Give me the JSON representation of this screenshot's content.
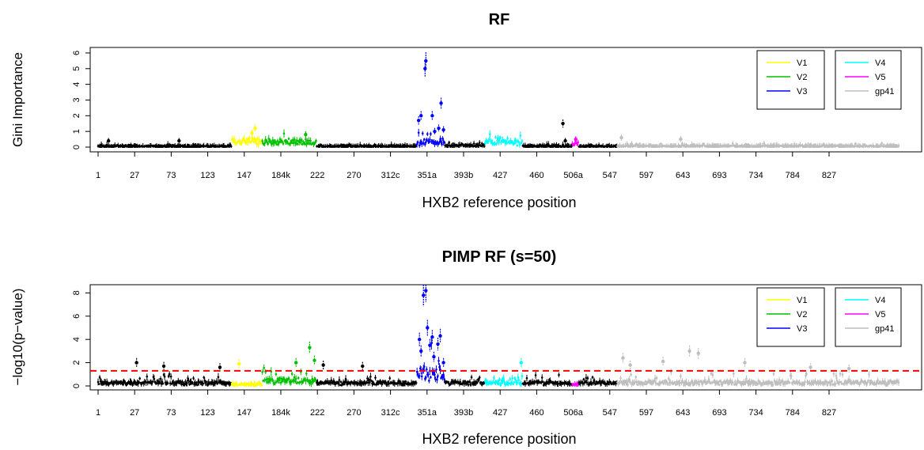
{
  "colors": {
    "V1": "#ffff00",
    "V2": "#00c000",
    "V3": "#0000ff",
    "V4": "#00ffff",
    "V5": "#ff00ff",
    "gp41": "#bebebe",
    "other": "#000000",
    "threshold": "#ff0000"
  },
  "chart_data": [
    {
      "type": "scatter",
      "title": "RF",
      "xlabel": "HXB2 reference position",
      "ylabel": "Gini Importance",
      "ylim": [
        0,
        6.2
      ],
      "yticks": [
        "0",
        "1",
        "2",
        "3",
        "4",
        "5",
        "6"
      ],
      "xticks": [
        "1",
        "27",
        "73",
        "123",
        "147",
        "184k",
        "222",
        "270",
        "312c",
        "351a",
        "393b",
        "427",
        "460",
        "506a",
        "547",
        "597",
        "643",
        "693",
        "734",
        "784",
        "827"
      ],
      "legend": {
        "placement": "top-right",
        "left_box": [
          "V1",
          "V2",
          "V3"
        ],
        "right_box": [
          "V4",
          "V5",
          "gp41"
        ]
      },
      "segments": [
        {
          "region": "other",
          "start": 0,
          "end": 167,
          "base": 0.05,
          "noise": 0.12
        },
        {
          "region": "V1",
          "start": 167,
          "end": 205,
          "base": 0.4,
          "noise": 0.6
        },
        {
          "region": "V2",
          "start": 205,
          "end": 273,
          "base": 0.3,
          "noise": 0.5
        },
        {
          "region": "other",
          "start": 273,
          "end": 398,
          "base": 0.05,
          "noise": 0.12
        },
        {
          "region": "V3",
          "start": 398,
          "end": 433,
          "base": 0.3,
          "noise": 0.7
        },
        {
          "region": "other",
          "start": 433,
          "end": 483,
          "base": 0.08,
          "noise": 0.25
        },
        {
          "region": "V4",
          "start": 483,
          "end": 530,
          "base": 0.3,
          "noise": 0.6
        },
        {
          "region": "other",
          "start": 530,
          "end": 592,
          "base": 0.05,
          "noise": 0.15
        },
        {
          "region": "V5",
          "start": 592,
          "end": 600,
          "base": 0.2,
          "noise": 0.3
        },
        {
          "region": "other",
          "start": 600,
          "end": 648,
          "base": 0.05,
          "noise": 0.1
        },
        {
          "region": "gp41",
          "start": 648,
          "end": 1000,
          "base": 0.05,
          "noise": 0.2
        }
      ],
      "peaks": [
        {
          "x": 400,
          "y": 1.7,
          "region": "V3"
        },
        {
          "x": 403,
          "y": 2.0,
          "region": "V3"
        },
        {
          "x": 408,
          "y": 5.0,
          "region": "V3"
        },
        {
          "x": 409,
          "y": 5.5,
          "region": "V3"
        },
        {
          "x": 417,
          "y": 2.0,
          "region": "V3"
        },
        {
          "x": 420,
          "y": 1.0,
          "region": "V3"
        },
        {
          "x": 425,
          "y": 1.2,
          "region": "V3"
        },
        {
          "x": 428,
          "y": 2.8,
          "region": "V3"
        },
        {
          "x": 431,
          "y": 1.1,
          "region": "V3"
        },
        {
          "x": 196,
          "y": 1.2,
          "region": "V1"
        },
        {
          "x": 192,
          "y": 0.9,
          "region": "V1"
        },
        {
          "x": 259,
          "y": 0.8,
          "region": "V2"
        },
        {
          "x": 580,
          "y": 1.5,
          "region": "other"
        },
        {
          "x": 583,
          "y": 0.4,
          "region": "other"
        },
        {
          "x": 13,
          "y": 0.4,
          "region": "other"
        },
        {
          "x": 101,
          "y": 0.4,
          "region": "other"
        },
        {
          "x": 596,
          "y": 0.5,
          "region": "V5"
        },
        {
          "x": 727,
          "y": 0.5,
          "region": "gp41"
        },
        {
          "x": 653,
          "y": 0.6,
          "region": "gp41"
        }
      ]
    },
    {
      "type": "scatter",
      "title": "PIMP RF (s=50)",
      "xlabel": "HXB2 reference position",
      "ylabel": "−log10(p−value)",
      "ylim": [
        0,
        8.5
      ],
      "yticks": [
        "0",
        "2",
        "4",
        "6",
        "8"
      ],
      "threshold": 1.3,
      "xticks": [
        "1",
        "27",
        "73",
        "123",
        "147",
        "184k",
        "222",
        "270",
        "312c",
        "351a",
        "393b",
        "427",
        "460",
        "506a",
        "547",
        "597",
        "643",
        "693",
        "734",
        "784",
        "827"
      ],
      "legend": {
        "placement": "top-right",
        "left_box": [
          "V1",
          "V2",
          "V3"
        ],
        "right_box": [
          "V4",
          "V5",
          "gp41"
        ]
      },
      "segments": [
        {
          "region": "other",
          "start": 0,
          "end": 167,
          "base": 0.2,
          "noise": 0.8
        },
        {
          "region": "V1",
          "start": 167,
          "end": 205,
          "base": 0.1,
          "noise": 0.5
        },
        {
          "region": "V2",
          "start": 205,
          "end": 273,
          "base": 0.3,
          "noise": 1.3
        },
        {
          "region": "other",
          "start": 273,
          "end": 398,
          "base": 0.2,
          "noise": 0.6
        },
        {
          "region": "V3",
          "start": 398,
          "end": 433,
          "base": 1.0,
          "noise": 2.5
        },
        {
          "region": "other",
          "start": 433,
          "end": 483,
          "base": 0.2,
          "noise": 0.7
        },
        {
          "region": "V4",
          "start": 483,
          "end": 530,
          "base": 0.2,
          "noise": 0.7
        },
        {
          "region": "other",
          "start": 530,
          "end": 592,
          "base": 0.2,
          "noise": 0.8
        },
        {
          "region": "V5",
          "start": 592,
          "end": 600,
          "base": 0.1,
          "noise": 0.3
        },
        {
          "region": "other",
          "start": 600,
          "end": 648,
          "base": 0.2,
          "noise": 0.7
        },
        {
          "region": "gp41",
          "start": 648,
          "end": 1000,
          "base": 0.2,
          "noise": 1.0
        }
      ],
      "peaks": [
        {
          "x": 401,
          "y": 4.0,
          "region": "V3"
        },
        {
          "x": 403,
          "y": 3.0,
          "region": "V3"
        },
        {
          "x": 406,
          "y": 7.8,
          "region": "V3"
        },
        {
          "x": 409,
          "y": 8.2,
          "region": "V3"
        },
        {
          "x": 411,
          "y": 5.0,
          "region": "V3"
        },
        {
          "x": 414,
          "y": 3.5,
          "region": "V3"
        },
        {
          "x": 417,
          "y": 4.2,
          "region": "V3"
        },
        {
          "x": 419,
          "y": 2.5,
          "region": "V3"
        },
        {
          "x": 424,
          "y": 3.6,
          "region": "V3"
        },
        {
          "x": 427,
          "y": 4.3,
          "region": "V3"
        },
        {
          "x": 431,
          "y": 2.0,
          "region": "V3"
        },
        {
          "x": 48,
          "y": 2.0,
          "region": "other"
        },
        {
          "x": 82,
          "y": 1.7,
          "region": "other"
        },
        {
          "x": 152,
          "y": 1.6,
          "region": "other"
        },
        {
          "x": 176,
          "y": 1.9,
          "region": "V1"
        },
        {
          "x": 247,
          "y": 2.0,
          "region": "V2"
        },
        {
          "x": 264,
          "y": 3.3,
          "region": "V2"
        },
        {
          "x": 270,
          "y": 2.2,
          "region": "V2"
        },
        {
          "x": 281,
          "y": 1.8,
          "region": "other"
        },
        {
          "x": 330,
          "y": 1.7,
          "region": "other"
        },
        {
          "x": 528,
          "y": 2.0,
          "region": "V4"
        },
        {
          "x": 655,
          "y": 2.4,
          "region": "gp41"
        },
        {
          "x": 664,
          "y": 1.8,
          "region": "gp41"
        },
        {
          "x": 705,
          "y": 2.1,
          "region": "gp41"
        },
        {
          "x": 738,
          "y": 3.0,
          "region": "gp41"
        },
        {
          "x": 749,
          "y": 2.8,
          "region": "gp41"
        },
        {
          "x": 807,
          "y": 2.0,
          "region": "gp41"
        },
        {
          "x": 889,
          "y": 1.6,
          "region": "gp41"
        },
        {
          "x": 937,
          "y": 1.5,
          "region": "gp41"
        }
      ]
    }
  ]
}
